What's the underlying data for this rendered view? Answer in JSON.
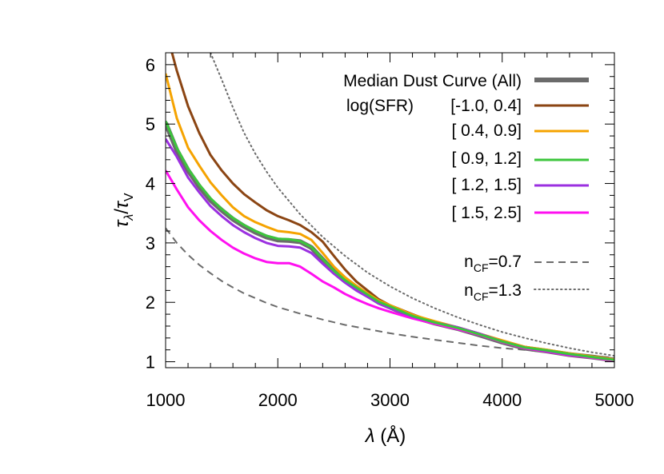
{
  "chart_data": {
    "type": "line",
    "title": "",
    "xlabel": "λ (Å)",
    "ylabel": "τλ/τV",
    "ylabel_parts": {
      "num": "τ",
      "num_sub": "λ",
      "den": "τ",
      "den_sub": "V"
    },
    "xlim": [
      1000,
      5000
    ],
    "ylim": [
      0.9,
      6.2
    ],
    "xticks": [
      1000,
      2000,
      3000,
      4000,
      5000
    ],
    "yticks": [
      1,
      2,
      3,
      4,
      5,
      6
    ],
    "grid": false,
    "legend_position": "top-right",
    "legend_header": "log(SFR)",
    "series": [
      {
        "name": "Median Dust Curve (All)",
        "color": "#6b6b6b",
        "style": "thick",
        "x": [
          1000,
          1100,
          1200,
          1300,
          1400,
          1500,
          1600,
          1700,
          1800,
          1900,
          2000,
          2100,
          2200,
          2300,
          2400,
          2500,
          2600,
          2700,
          2800,
          2900,
          3000,
          3200,
          3400,
          3600,
          3800,
          4000,
          4200,
          4400,
          4600,
          4800,
          5000
        ],
        "y": [
          5.02,
          4.56,
          4.22,
          3.95,
          3.72,
          3.55,
          3.4,
          3.28,
          3.18,
          3.1,
          3.05,
          3.04,
          3.02,
          2.92,
          2.72,
          2.52,
          2.36,
          2.24,
          2.12,
          2.0,
          1.92,
          1.76,
          1.65,
          1.56,
          1.45,
          1.33,
          1.23,
          1.18,
          1.12,
          1.08,
          1.03
        ]
      },
      {
        "name": "[-1.0, 0.4]",
        "color": "#8b4513",
        "style": "solid",
        "x": [
          1000,
          1050,
          1100,
          1200,
          1300,
          1400,
          1500,
          1600,
          1700,
          1800,
          1900,
          2000,
          2100,
          2200,
          2300,
          2400,
          2500,
          2600,
          2700,
          2800,
          2900,
          3000,
          3200,
          3400,
          3600,
          3800,
          4000,
          4200,
          4400,
          4600,
          4800,
          5000
        ],
        "y": [
          6.7,
          6.25,
          5.9,
          5.3,
          4.85,
          4.48,
          4.22,
          4.0,
          3.82,
          3.68,
          3.55,
          3.45,
          3.38,
          3.3,
          3.18,
          3.02,
          2.78,
          2.55,
          2.35,
          2.2,
          2.05,
          1.95,
          1.8,
          1.66,
          1.57,
          1.46,
          1.35,
          1.25,
          1.19,
          1.14,
          1.09,
          1.04
        ]
      },
      {
        "name": "[ 0.4, 0.9]",
        "color": "#f5a300",
        "style": "solid",
        "x": [
          1000,
          1100,
          1200,
          1300,
          1400,
          1500,
          1600,
          1700,
          1800,
          1900,
          2000,
          2100,
          2200,
          2300,
          2400,
          2500,
          2600,
          2700,
          2800,
          2900,
          3000,
          3200,
          3400,
          3600,
          3800,
          4000,
          4200,
          4400,
          4600,
          4800,
          5000
        ],
        "y": [
          5.85,
          5.1,
          4.6,
          4.3,
          4.02,
          3.8,
          3.6,
          3.45,
          3.35,
          3.27,
          3.2,
          3.18,
          3.15,
          3.05,
          2.83,
          2.6,
          2.42,
          2.28,
          2.15,
          2.03,
          1.95,
          1.79,
          1.68,
          1.58,
          1.47,
          1.36,
          1.25,
          1.2,
          1.14,
          1.09,
          1.04
        ]
      },
      {
        "name": "[ 0.9, 1.2]",
        "color": "#3cc63c",
        "style": "solid",
        "x": [
          1000,
          1100,
          1200,
          1300,
          1400,
          1500,
          1600,
          1700,
          1800,
          1900,
          2000,
          2100,
          2200,
          2300,
          2400,
          2500,
          2600,
          2700,
          2800,
          2900,
          3000,
          3200,
          3400,
          3600,
          3800,
          4000,
          4200,
          4400,
          4600,
          4800,
          5000
        ],
        "y": [
          5.05,
          4.6,
          4.25,
          3.98,
          3.75,
          3.57,
          3.42,
          3.3,
          3.2,
          3.12,
          3.07,
          3.06,
          3.03,
          2.93,
          2.73,
          2.53,
          2.37,
          2.25,
          2.13,
          2.01,
          1.93,
          1.77,
          1.66,
          1.57,
          1.46,
          1.34,
          1.24,
          1.19,
          1.13,
          1.08,
          1.03
        ]
      },
      {
        "name": "[ 1.2, 1.5]",
        "color": "#9b30e0",
        "style": "solid",
        "x": [
          1000,
          1100,
          1200,
          1300,
          1400,
          1500,
          1600,
          1700,
          1800,
          1900,
          2000,
          2100,
          2200,
          2300,
          2400,
          2500,
          2600,
          2700,
          2800,
          2900,
          3000,
          3200,
          3400,
          3600,
          3800,
          4000,
          4200,
          4400,
          4600,
          4800,
          5000
        ],
        "y": [
          4.75,
          4.45,
          4.1,
          3.85,
          3.62,
          3.45,
          3.3,
          3.18,
          3.08,
          3.0,
          2.95,
          2.94,
          2.92,
          2.83,
          2.65,
          2.48,
          2.33,
          2.2,
          2.09,
          1.98,
          1.9,
          1.76,
          1.66,
          1.58,
          1.47,
          1.34,
          1.24,
          1.18,
          1.12,
          1.08,
          1.03
        ]
      },
      {
        "name": "[ 1.5, 2.5]",
        "color": "#ff10f0",
        "style": "solid",
        "x": [
          1000,
          1100,
          1200,
          1300,
          1400,
          1500,
          1600,
          1700,
          1800,
          1900,
          2000,
          2100,
          2200,
          2300,
          2400,
          2500,
          2600,
          2700,
          2800,
          2900,
          3000,
          3200,
          3400,
          3600,
          3800,
          4000,
          4200,
          4400,
          4600,
          4800,
          5000
        ],
        "y": [
          4.22,
          3.9,
          3.6,
          3.38,
          3.2,
          3.05,
          2.92,
          2.82,
          2.74,
          2.68,
          2.66,
          2.66,
          2.6,
          2.48,
          2.35,
          2.25,
          2.14,
          2.05,
          1.97,
          1.9,
          1.84,
          1.73,
          1.64,
          1.55,
          1.45,
          1.33,
          1.23,
          1.17,
          1.11,
          1.07,
          1.02
        ]
      },
      {
        "name": "n_CF=0.7",
        "label_main": "n",
        "label_sub": "CF",
        "label_tail": "=0.7",
        "color": "#6b6b6b",
        "style": "dashed",
        "x": [
          1000,
          1100,
          1200,
          1300,
          1400,
          1500,
          1600,
          1700,
          1800,
          1900,
          2000,
          2200,
          2400,
          2600,
          2800,
          3000,
          3200,
          3400,
          3600,
          3800,
          4000,
          4200,
          4400,
          4600,
          4800,
          5000
        ],
        "y": [
          3.25,
          3.0,
          2.8,
          2.63,
          2.49,
          2.36,
          2.25,
          2.15,
          2.07,
          1.99,
          1.92,
          1.81,
          1.71,
          1.62,
          1.55,
          1.48,
          1.42,
          1.37,
          1.32,
          1.27,
          1.23,
          1.2,
          1.16,
          1.13,
          1.1,
          1.07
        ]
      },
      {
        "name": "n_CF=1.3",
        "label_main": "n",
        "label_sub": "CF",
        "label_tail": "=1.3",
        "color": "#6b6b6b",
        "style": "dotted",
        "x": [
          1400,
          1500,
          1600,
          1700,
          1800,
          1900,
          2000,
          2200,
          2400,
          2600,
          2800,
          3000,
          3200,
          3400,
          3600,
          3800,
          4000,
          4200,
          4400,
          4600,
          4800,
          5000
        ],
        "y": [
          6.2,
          5.75,
          5.28,
          4.85,
          4.5,
          4.2,
          3.93,
          3.48,
          3.1,
          2.78,
          2.5,
          2.27,
          2.07,
          1.9,
          1.75,
          1.62,
          1.5,
          1.4,
          1.31,
          1.23,
          1.16,
          1.1
        ]
      }
    ]
  }
}
